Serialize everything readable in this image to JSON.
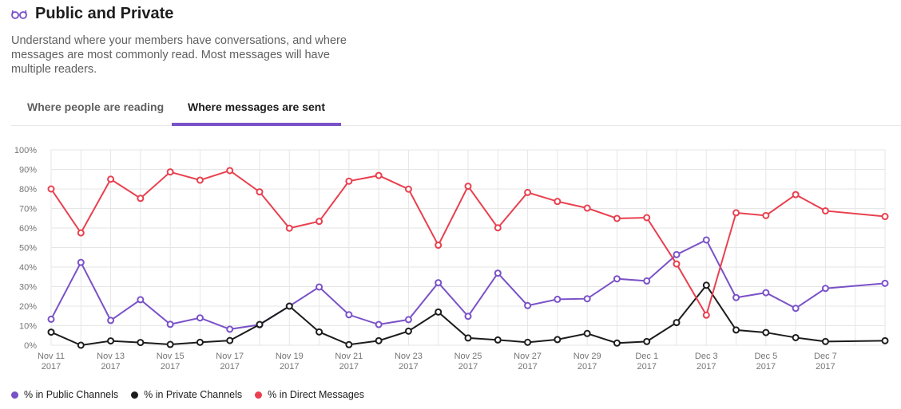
{
  "header": {
    "icon": "glasses-icon",
    "title": "Public and Private",
    "description": "Understand where your members have conversations, and where messages are most commonly read. Most messages will have multiple readers."
  },
  "tabs": [
    {
      "label": "Where people are reading",
      "active": false
    },
    {
      "label": "Where messages are sent",
      "active": true
    }
  ],
  "colors": {
    "accent": "#7a52c7",
    "public": "#7a52c7",
    "private": "#1d1c1d",
    "direct": "#e8404f"
  },
  "chart_data": {
    "type": "line",
    "x": [
      "Nov 11 2017",
      "Nov 12 2017",
      "Nov 13 2017",
      "Nov 14 2017",
      "Nov 15 2017",
      "Nov 16 2017",
      "Nov 17 2017",
      "Nov 18 2017",
      "Nov 19 2017",
      "Nov 20 2017",
      "Nov 21 2017",
      "Nov 22 2017",
      "Nov 23 2017",
      "Nov 24 2017",
      "Nov 25 2017",
      "Nov 26 2017",
      "Nov 27 2017",
      "Nov 28 2017",
      "Nov 29 2017",
      "Nov 30 2017",
      "Dec 1 2017",
      "Dec 2 2017",
      "Dec 3 2017",
      "Dec 4 2017",
      "Dec 5 2017",
      "Dec 6 2017",
      "Dec 7 2017",
      "Dec 8 2017",
      "Dec 9 2017"
    ],
    "x_ticks": [
      [
        "Nov 11",
        "2017"
      ],
      [
        "Nov 13",
        "2017"
      ],
      [
        "Nov 15",
        "2017"
      ],
      [
        "Nov 17",
        "2017"
      ],
      [
        "Nov 19",
        "2017"
      ],
      [
        "Nov 21",
        "2017"
      ],
      [
        "Nov 23",
        "2017"
      ],
      [
        "Nov 25",
        "2017"
      ],
      [
        "Nov 27",
        "2017"
      ],
      [
        "Nov 29",
        "2017"
      ],
      [
        "Dec 1",
        "2017"
      ],
      [
        "Dec 3",
        "2017"
      ],
      [
        "Dec 5",
        "2017"
      ],
      [
        "Dec 7",
        "2017"
      ]
    ],
    "y_ticks": [
      "0%",
      "10%",
      "20%",
      "30%",
      "40%",
      "50%",
      "60%",
      "70%",
      "80%",
      "90%",
      "100%"
    ],
    "ylim": [
      0,
      100
    ],
    "grid": true,
    "legend": "bottom-left",
    "series": [
      {
        "name": "% in Public Channels",
        "color": "#7a52c7",
        "values": [
          13.3,
          42.4,
          12.7,
          23.3,
          10.7,
          14,
          8.2,
          10.5,
          20,
          29.8,
          15.6,
          10.6,
          13.1,
          32,
          14.8,
          36.9,
          20.3,
          23.5,
          23.8,
          34,
          32.9,
          46.4,
          53.9,
          24.4,
          26.9,
          18.9,
          29.1,
          null,
          31.7
        ]
      },
      {
        "name": "% in Private Channels",
        "color": "#1d1c1d",
        "values": [
          6.7,
          0,
          2.2,
          1.4,
          0.4,
          1.5,
          2.4,
          10.6,
          20,
          6.8,
          0.3,
          2.3,
          7.2,
          17,
          3.7,
          2.7,
          1.5,
          2.9,
          6,
          1.1,
          1.9,
          11.6,
          30.7,
          7.8,
          6.5,
          3.9,
          1.9,
          null,
          2.3
        ]
      },
      {
        "name": "% in Direct Messages",
        "color": "#e8404f",
        "values": [
          80,
          57.5,
          85,
          75.2,
          88.7,
          84.5,
          89.4,
          78.5,
          59.9,
          63.4,
          84,
          86.9,
          79.9,
          51.2,
          81.4,
          60.1,
          78.2,
          73.6,
          70.2,
          64.9,
          65.3,
          41.6,
          15.4,
          67.8,
          66.4,
          77.1,
          68.8,
          null,
          65.9
        ]
      }
    ]
  }
}
